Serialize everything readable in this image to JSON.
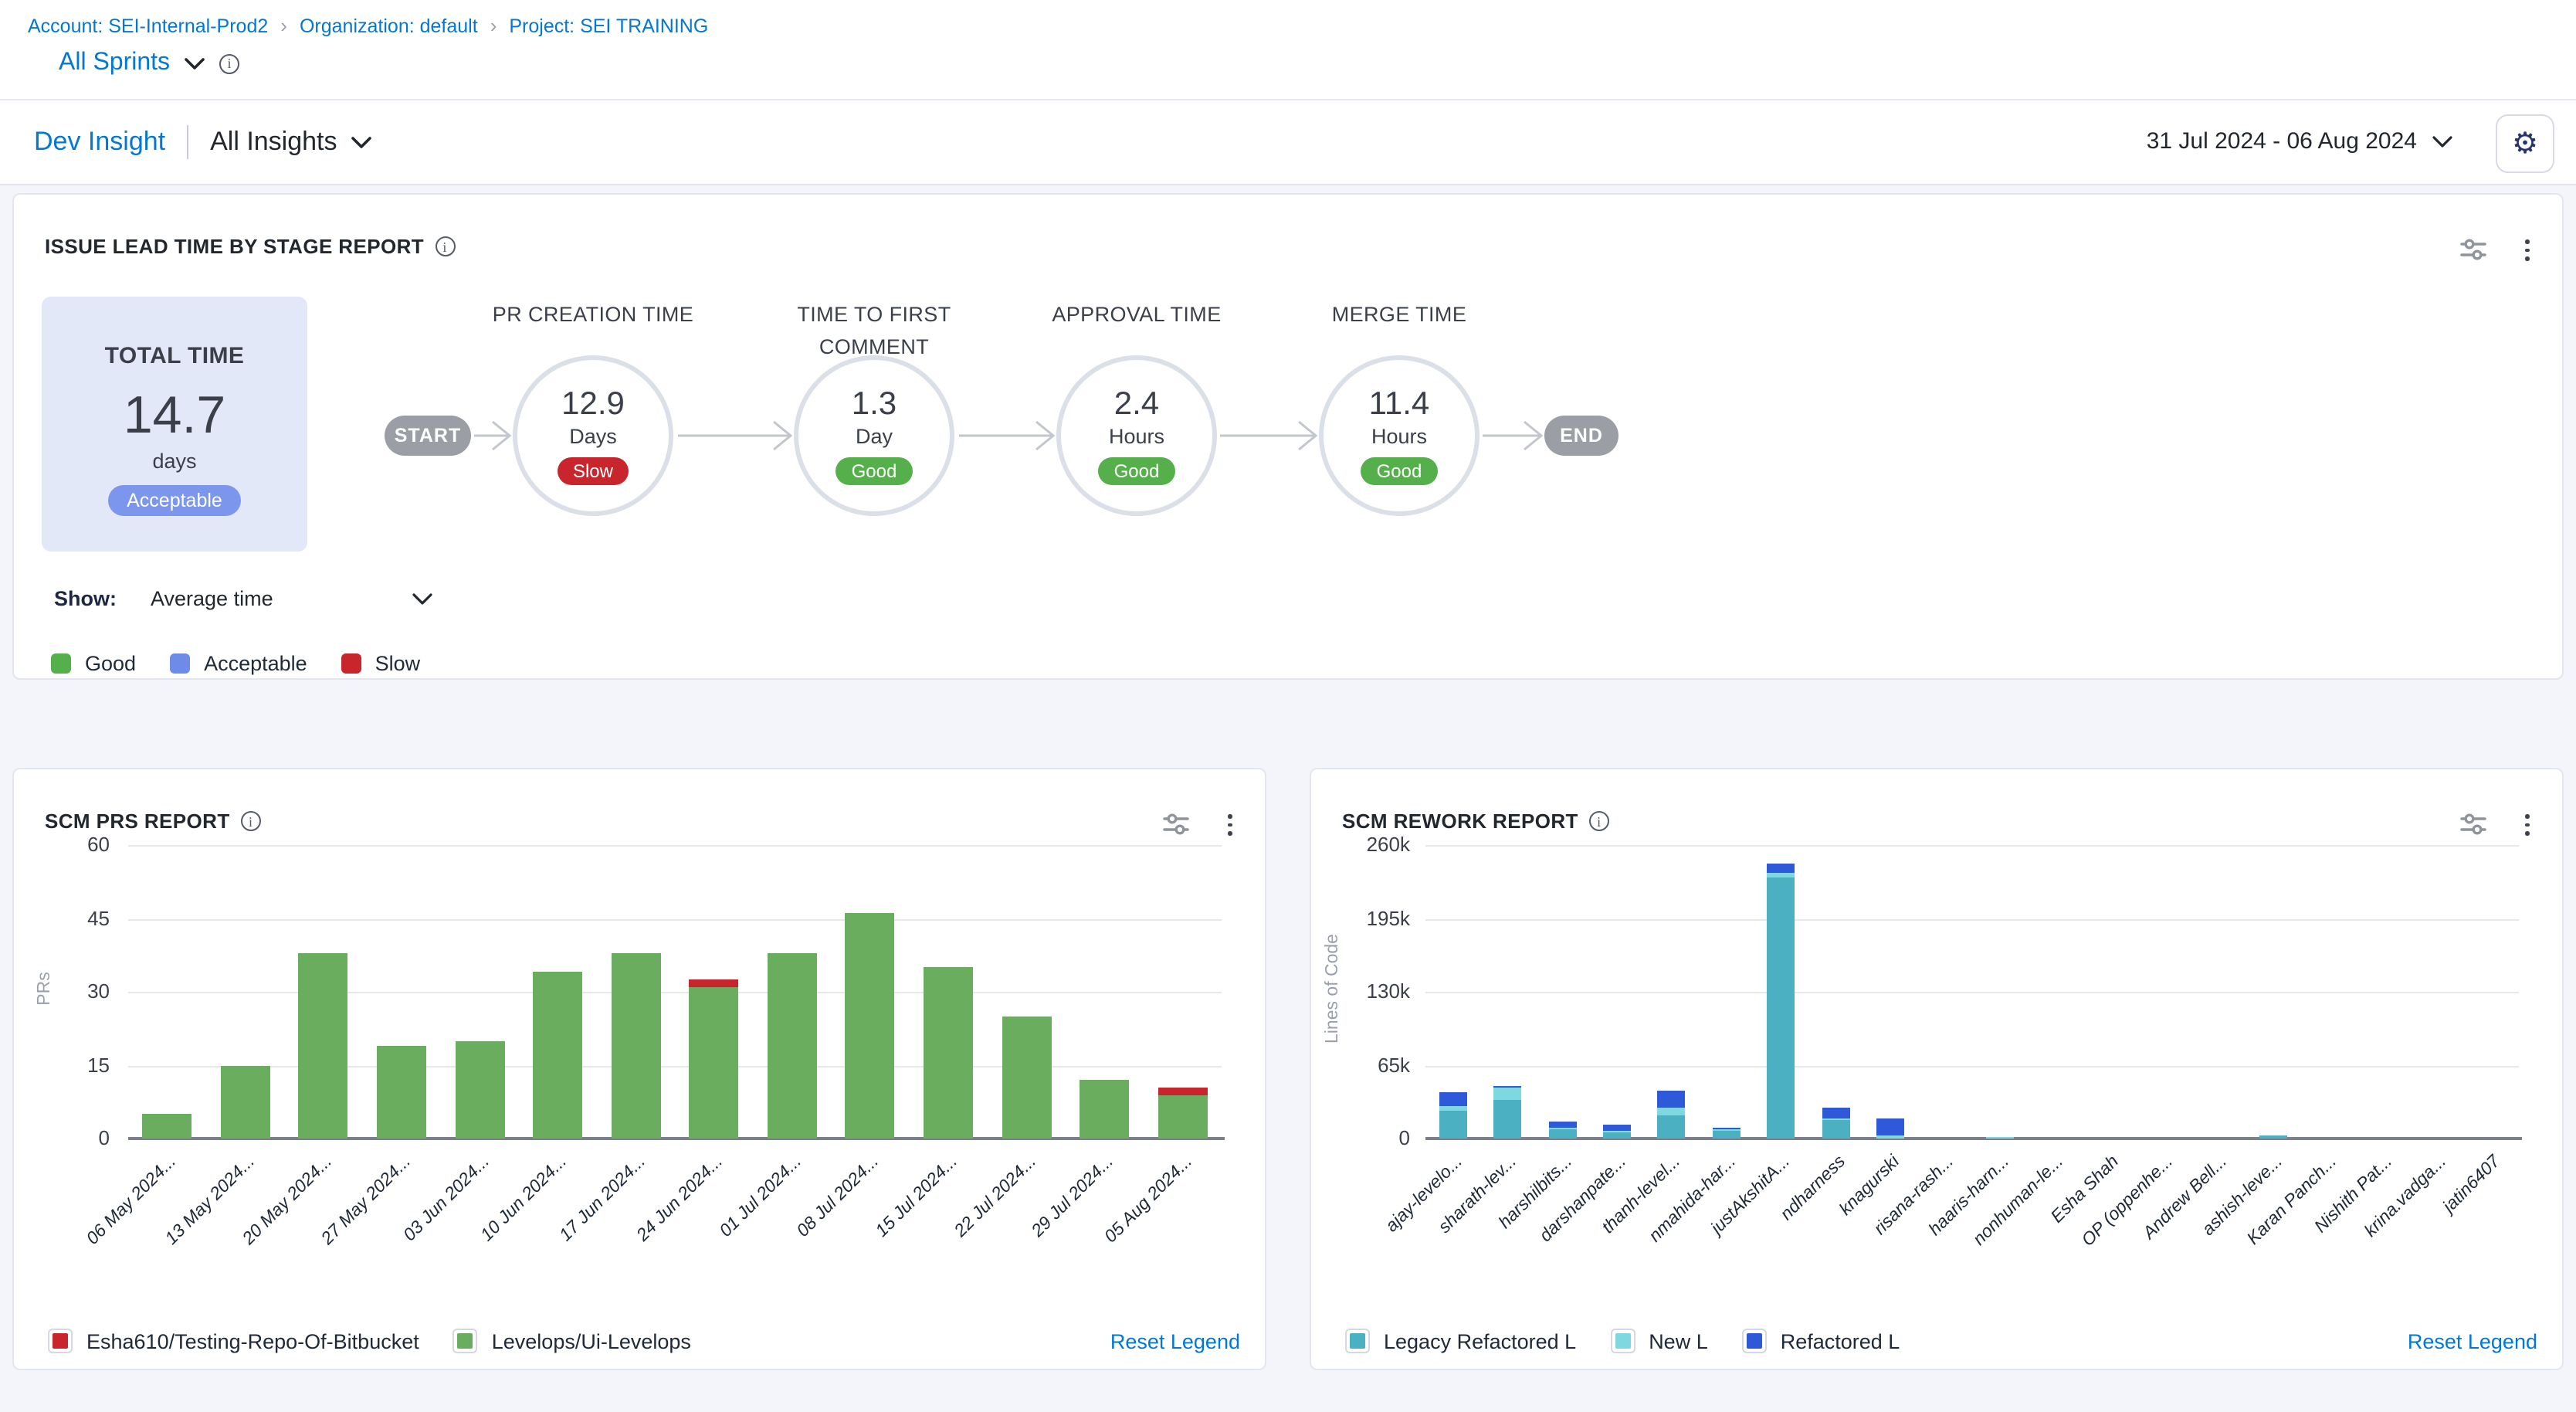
{
  "icons": {
    "breadcrumb_separator": "chevron-right-icon",
    "dropdown": "chevron-down-icon",
    "info": "info-icon",
    "settings": "gear-icon",
    "widget_filter": "sliders-icon",
    "widget_menu": "kebab-menu-icon"
  },
  "colors": {
    "link": "#0278d5",
    "good": "#55b04b",
    "acceptable": "#6e8be8",
    "slow": "#c9252d",
    "total_card_bg": "#e2e8f8",
    "badge_acceptable": "#7b96ec",
    "pill_gray": "#9b9fa5"
  },
  "breadcrumb": {
    "items": [
      "Account: SEI-Internal-Prod2",
      "Organization: default",
      "Project: SEI TRAINING"
    ],
    "separator": "›"
  },
  "sprint_selector": {
    "label": "All Sprints"
  },
  "header": {
    "insight_name": "Dev Insight",
    "insights_dropdown": "All Insights",
    "date_range": "31 Jul 2024  -  06 Aug 2024"
  },
  "lead_time_panel": {
    "title": "ISSUE LEAD TIME BY STAGE REPORT",
    "total_card": {
      "label": "TOTAL TIME",
      "value": "14.7",
      "unit": "days",
      "rating": "Acceptable"
    },
    "rating_colors": {
      "Good": "#55b04b",
      "Acceptable": "#7b96ec",
      "Slow": "#c9252d"
    },
    "flow": {
      "start_label": "START",
      "end_label": "END",
      "stages": [
        {
          "name": "PR CREATION TIME",
          "value": "12.9",
          "unit": "Days",
          "rating": "Slow"
        },
        {
          "name": "TIME TO FIRST COMMENT",
          "value": "1.3",
          "unit": "Day",
          "rating": "Good"
        },
        {
          "name": "APPROVAL TIME",
          "value": "2.4",
          "unit": "Hours",
          "rating": "Good"
        },
        {
          "name": "MERGE TIME",
          "value": "11.4",
          "unit": "Hours",
          "rating": "Good"
        }
      ]
    },
    "show_filter": {
      "label": "Show:",
      "value": "Average time"
    },
    "legend": [
      {
        "label": "Good",
        "color": "#55b04b"
      },
      {
        "label": "Acceptable",
        "color": "#6e8be8"
      },
      {
        "label": "Slow",
        "color": "#c9252d"
      }
    ]
  },
  "scm_prs_panel": {
    "title": "SCM PRS REPORT",
    "reset_legend_label": "Reset Legend",
    "legend": [
      {
        "label": "Esha610/Testing-Repo-Of-Bitbucket",
        "color": "#c9252d"
      },
      {
        "label": "Levelops/Ui-Levelops",
        "color": "#6aad5e"
      }
    ],
    "chart_data": {
      "type": "bar",
      "stacked": true,
      "title": "SCM PRS REPORT",
      "ylabel": "PRs",
      "ylim": [
        0,
        60
      ],
      "yticks": [
        0,
        15,
        30,
        45,
        60
      ],
      "ytick_labels": [
        "0",
        "15",
        "30",
        "45",
        "60"
      ],
      "grid": true,
      "legend_position": "bottom",
      "categories": [
        "06 May 2024...",
        "13 May 2024...",
        "20 May 2024...",
        "27 May 2024...",
        "03 Jun 2024...",
        "10 Jun 2024...",
        "17 Jun 2024...",
        "24 Jun 2024...",
        "01 Jul 2024...",
        "08 Jul 2024...",
        "15 Jul 2024...",
        "22 Jul 2024...",
        "29 Jul 2024...",
        "05 Aug 2024..."
      ],
      "series": [
        {
          "name": "Levelops/Ui-Levelops",
          "color": "#6aad5e",
          "values": [
            5,
            15,
            38,
            19,
            20,
            34,
            38,
            31,
            38,
            46,
            35,
            25,
            12,
            9
          ]
        },
        {
          "name": "Esha610/Testing-Repo-Of-Bitbucket",
          "color": "#c9252d",
          "values": [
            0,
            0,
            0,
            0,
            0,
            0,
            0,
            1.5,
            0,
            0,
            0,
            0,
            0,
            1.5
          ]
        }
      ]
    }
  },
  "scm_rework_panel": {
    "title": "SCM REWORK REPORT",
    "reset_legend_label": "Reset Legend",
    "legend": [
      {
        "label": "Legacy Refactored L",
        "color": "#4bb0c1"
      },
      {
        "label": "New L",
        "color": "#7fd8df"
      },
      {
        "label": "Refactored L",
        "color": "#2e59d9"
      }
    ],
    "chart_data": {
      "type": "bar",
      "stacked": true,
      "title": "SCM REWORK REPORT",
      "ylabel": "Lines of Code",
      "unit": "thousands of lines",
      "ylim": [
        0,
        260
      ],
      "yticks": [
        0,
        65,
        130,
        195,
        260
      ],
      "ytick_labels": [
        "0",
        "65k",
        "130k",
        "195k",
        "260k"
      ],
      "grid": true,
      "legend_position": "bottom",
      "categories": [
        "ajay-levelo...",
        "sharath-lev...",
        "harshilbits...",
        "darshanpate...",
        "thanh-level...",
        "nmahida-har...",
        "justAkshitA...",
        "ndharness",
        "knagurski",
        "risana-rash...",
        "haaris-harn...",
        "nonhuman-le...",
        "Esha Shah",
        "OP (oppenhe...",
        "Andrew Bell...",
        "ashish-leve...",
        "Karan Panch...",
        "Nishith Pat...",
        "krina.vadga...",
        "jatin6407"
      ],
      "series": [
        {
          "name": "Legacy Refactored L",
          "color": "#4bb0c1",
          "values": [
            25,
            34,
            8,
            5,
            21,
            7,
            231,
            17,
            0,
            0,
            0,
            0,
            0,
            0,
            0,
            3,
            0,
            0,
            0,
            0
          ]
        },
        {
          "name": "New L",
          "color": "#7fd8df",
          "values": [
            4,
            11,
            2,
            2,
            6,
            1,
            5,
            1,
            3,
            0,
            2,
            0,
            0,
            0,
            0,
            0,
            0,
            0,
            0,
            0
          ]
        },
        {
          "name": "Refactored L",
          "color": "#2e59d9",
          "values": [
            12,
            2,
            5,
            6,
            15,
            1,
            7,
            10,
            15,
            0,
            0,
            0,
            0,
            0,
            0,
            0,
            0,
            0,
            0,
            0
          ]
        }
      ]
    }
  }
}
